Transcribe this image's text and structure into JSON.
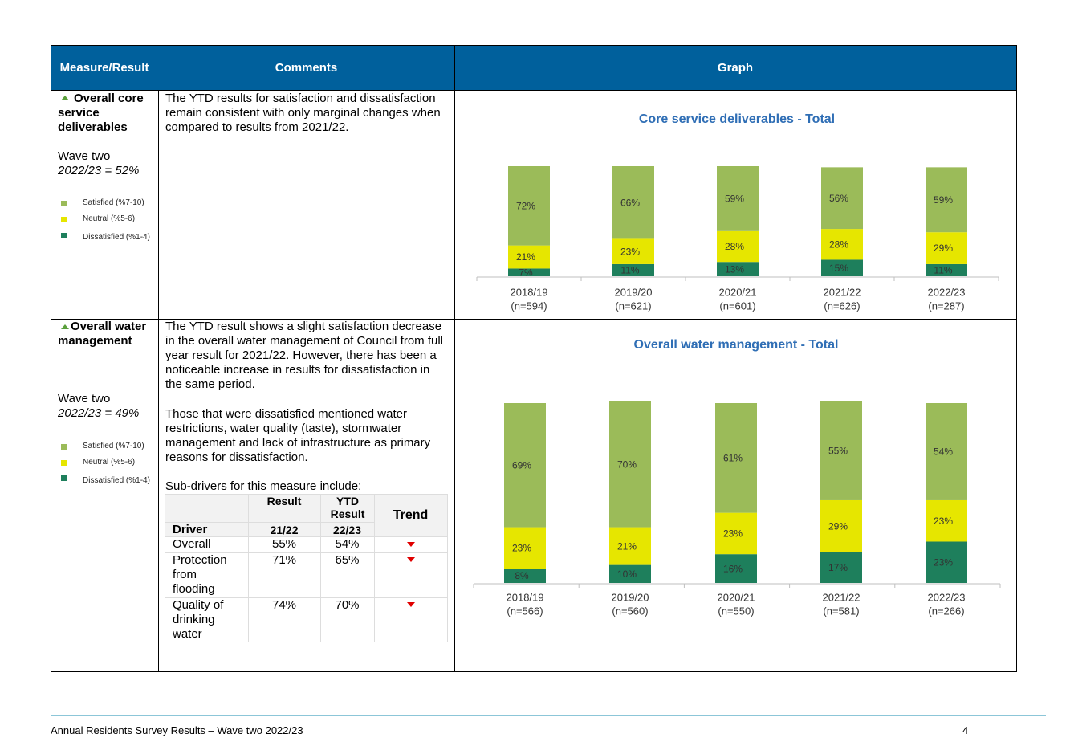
{
  "table": {
    "header": [
      "Measure/Result",
      "Comments",
      "Graph"
    ],
    "rows": [
      {
        "measure": "Overall core service deliverables",
        "wave": "Wave two",
        "wave_result": "2022/23 = 52%",
        "comments": [
          "The YTD results for satisfaction and dissatisfaction remain consistent with only marginal changes when compared to results from 2021/22."
        ],
        "chart_data": {
          "type": "stacked_bar",
          "title": "Core service deliverables - Total",
          "categories": [
            "2018/19",
            "2019/20",
            "2020/21",
            "2021/22",
            "2022/23"
          ],
          "category_notes": [
            "(n=594)",
            "(n=621)",
            "(n=601)",
            "(n=626)",
            "(n=287)"
          ],
          "ylim": [
            0,
            100
          ],
          "series": [
            {
              "name": "Satisfied (%7-10)",
              "color": "#9bbb59",
              "values": [
                72,
                66,
                59,
                56,
                59
              ],
              "value_labels": [
                "72%",
                "66%",
                "59%",
                "56%",
                "59%"
              ]
            },
            {
              "name": "Neutral (%5-6)",
              "color": "#e6e600",
              "values": [
                21,
                23,
                28,
                28,
                29
              ],
              "value_labels": [
                "21%",
                "23%",
                "28%",
                "28%",
                "29%"
              ]
            },
            {
              "name": "Dissatisfied (%1-4)",
              "color": "#1e7f5c",
              "values": [
                7,
                11,
                13,
                15,
                11
              ],
              "value_labels": [
                "7%",
                "11%",
                "13%",
                "15%",
                "11%"
              ]
            }
          ]
        }
      },
      {
        "measure": "Overall water management",
        "wave": "Wave two",
        "wave_result": "2022/23 = 49%",
        "comments": [
          "The YTD result shows a slight satisfaction decrease in the overall water management of Council from full year result for 2021/22. However, there has been a noticeable increase in results for dissatisfaction in the same period.",
          "Those that were dissatisfied mentioned water restrictions, water quality (taste), stormwater management and lack of infrastructure as primary reasons for dissatisfaction.",
          "Sub-drivers for this measure include:"
        ],
        "sub_drivers": {
          "header": [
            "Result",
            "YTD Result",
            "Trend"
          ],
          "subheader": [
            "Driver",
            "21/22",
            "22/23"
          ],
          "rows": [
            [
              "Overall",
              "55%",
              "54%"
            ],
            [
              "Protection from flooding",
              "71%",
              "65%"
            ],
            [
              "Quality of drinking water",
              "74%",
              "70%"
            ]
          ]
        },
        "chart_data": {
          "type": "stacked_bar",
          "title": "Overall water management - Total",
          "categories": [
            "2018/19",
            "2019/20",
            "2020/21",
            "2021/22",
            "2022/23"
          ],
          "category_notes": [
            "(n=566)",
            "(n=560)",
            "(n=550)",
            "(n=581)",
            "(n=266)"
          ],
          "ylim": [
            0,
            100
          ],
          "series": [
            {
              "name": "Satisfied (%7-10)",
              "color": "#9bbb59",
              "values": [
                69,
                70,
                61,
                55,
                54
              ],
              "value_labels": [
                "69%",
                "70%",
                "61%",
                "55%",
                "54%"
              ]
            },
            {
              "name": "Neutral (%5-6)",
              "color": "#e6e600",
              "values": [
                23,
                21,
                23,
                29,
                23
              ],
              "value_labels": [
                "23%",
                "21%",
                "23%",
                "29%",
                "23%"
              ]
            },
            {
              "name": "Dissatisfied (%1-4)",
              "color": "#1e7f5c",
              "values": [
                8,
                10,
                16,
                17,
                23
              ],
              "value_labels": [
                "8%",
                "10%",
                "16%",
                "17%",
                "23%"
              ]
            }
          ]
        }
      }
    ]
  },
  "footer": {
    "text": "Annual Residents Survey Results – Wave two 2022/23",
    "page": "4"
  }
}
